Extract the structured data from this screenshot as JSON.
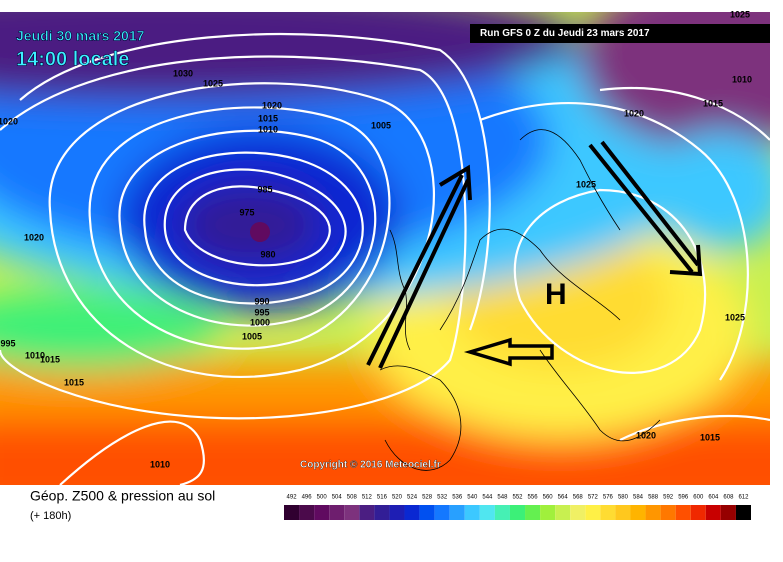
{
  "date_line": "Jeudi 30 mars 2017",
  "time_line": "14:00 locale",
  "run_info": "Run GFS 0 Z du Jeudi 23 mars 2017",
  "copyright": "Copyright © 2016 Meteociel.fr",
  "high_label": "H",
  "isobar_labels": [
    "1030",
    "1025",
    "1020",
    "1015",
    "1010",
    "1005",
    "985",
    "975",
    "980",
    "990",
    "995",
    "1000",
    "1005",
    "1020",
    "1020",
    "995",
    "1010",
    "1015",
    "1015",
    "1010",
    "1025",
    "1020",
    "1015",
    "1010",
    "1025",
    "1020",
    "1015",
    "1025"
  ],
  "legend": {
    "title": "Géop. Z500 & pression au sol",
    "subtitle": "(+ 180h)",
    "ticks": [
      492,
      496,
      500,
      504,
      508,
      512,
      516,
      520,
      524,
      528,
      532,
      536,
      540,
      544,
      548,
      552,
      556,
      560,
      564,
      568,
      572,
      576,
      580,
      584,
      588,
      592,
      596,
      600,
      604,
      608,
      612
    ],
    "colors": [
      "#300030",
      "#4b0a4b",
      "#600a60",
      "#6e1e6e",
      "#7d327d",
      "#4b1e82",
      "#321e96",
      "#1e1eb4",
      "#0a28d2",
      "#0050f0",
      "#1478ff",
      "#28a0ff",
      "#3cc8ff",
      "#50e6f0",
      "#46f0b4",
      "#3cf078",
      "#64f050",
      "#a0f03c",
      "#c8f050",
      "#f0f064",
      "#fff046",
      "#ffdc32",
      "#ffc81e",
      "#ffb400",
      "#ff9600",
      "#ff7800",
      "#ff5000",
      "#f02800",
      "#c80000",
      "#960000",
      "#000000"
    ]
  }
}
